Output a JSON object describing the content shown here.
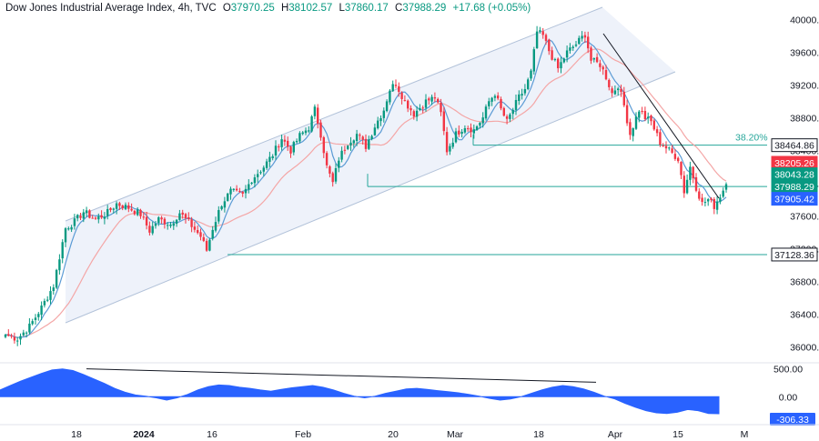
{
  "header": {
    "symbol": "Dow Jones Industrial Average Index, 4h, TVC",
    "open_label": "O",
    "open": "37970.25",
    "high_label": "H",
    "high": "38102.57",
    "low_label": "L",
    "low": "37860.17",
    "close_label": "C",
    "close": "37988.29",
    "change": "+17.68 (+0.05%)"
  },
  "colors": {
    "up": "#089981",
    "down": "#f23645",
    "ma_fast": "#5b9bd5",
    "ma_slow": "#f4a6a6",
    "channel": "#b2c2d9",
    "channel_fill": "#eef2fa",
    "level": "#26a69a",
    "oscillator": "#2962ff"
  },
  "chart_data": [
    {
      "type": "candlestick",
      "title": "Dow Jones Industrial Average Index, 4h, TVC",
      "y_range": [
        35850,
        40150
      ],
      "y_ticks": [
        "40000.00",
        "39600.00",
        "39200.00",
        "38800.00",
        "38400.00",
        "38000.00",
        "37600.00",
        "37200.00",
        "36800.00",
        "36400.00",
        "36000.00"
      ],
      "x_ticks": [
        {
          "label": "18",
          "bold": false
        },
        {
          "label": "2024",
          "bold": true
        },
        {
          "label": "16",
          "bold": false
        },
        {
          "label": "Feb",
          "bold": false
        },
        {
          "label": "20",
          "bold": false
        },
        {
          "label": "Mar",
          "bold": false
        },
        {
          "label": "18",
          "bold": false
        },
        {
          "label": "Apr",
          "bold": false
        },
        {
          "label": "15",
          "bold": false
        },
        {
          "label": "M",
          "bold": false
        }
      ],
      "price_path": [
        [
          0,
          36150
        ],
        [
          4,
          36100
        ],
        [
          8,
          36250
        ],
        [
          12,
          36480
        ],
        [
          16,
          36750
        ],
        [
          18,
          37100
        ],
        [
          20,
          37450
        ],
        [
          23,
          37530
        ],
        [
          26,
          37650
        ],
        [
          30,
          37560
        ],
        [
          34,
          37640
        ],
        [
          37,
          37750
        ],
        [
          41,
          37700
        ],
        [
          45,
          37620
        ],
        [
          48,
          37420
        ],
        [
          51,
          37560
        ],
        [
          55,
          37500
        ],
        [
          58,
          37640
        ],
        [
          62,
          37480
        ],
        [
          65,
          37350
        ],
        [
          67,
          37180
        ],
        [
          69,
          37450
        ],
        [
          72,
          37750
        ],
        [
          75,
          37900
        ],
        [
          79,
          37850
        ],
        [
          82,
          38050
        ],
        [
          86,
          38200
        ],
        [
          89,
          38350
        ],
        [
          92,
          38550
        ],
        [
          95,
          38400
        ],
        [
          98,
          38580
        ],
        [
          101,
          38680
        ],
        [
          103,
          38900
        ],
        [
          105,
          38600
        ],
        [
          107,
          38200
        ],
        [
          109,
          38000
        ],
        [
          111,
          38300
        ],
        [
          114,
          38500
        ],
        [
          117,
          38600
        ],
        [
          120,
          38450
        ],
        [
          123,
          38700
        ],
        [
          126,
          38900
        ],
        [
          128,
          39150
        ],
        [
          130,
          39220
        ],
        [
          133,
          39000
        ],
        [
          136,
          38850
        ],
        [
          140,
          39000
        ],
        [
          143,
          39050
        ],
        [
          145,
          38850
        ],
        [
          147,
          38400
        ],
        [
          150,
          38600
        ],
        [
          153,
          38700
        ],
        [
          156,
          38650
        ],
        [
          159,
          38800
        ],
        [
          161,
          39000
        ],
        [
          163,
          39100
        ],
        [
          165,
          38900
        ],
        [
          167,
          38750
        ],
        [
          169,
          38900
        ],
        [
          171,
          39050
        ],
        [
          173,
          39150
        ],
        [
          175,
          39350
        ],
        [
          176,
          39600
        ],
        [
          177,
          39850
        ],
        [
          179,
          39800
        ],
        [
          181,
          39620
        ],
        [
          184,
          39400
        ],
        [
          187,
          39600
        ],
        [
          190,
          39700
        ],
        [
          193,
          39820
        ],
        [
          195,
          39500
        ],
        [
          198,
          39450
        ],
        [
          200,
          39300
        ],
        [
          202,
          39100
        ],
        [
          204,
          39200
        ],
        [
          206,
          38950
        ],
        [
          208,
          38600
        ],
        [
          211,
          38900
        ],
        [
          213,
          38800
        ],
        [
          215,
          38750
        ],
        [
          218,
          38500
        ],
        [
          221,
          38400
        ],
        [
          224,
          38300
        ],
        [
          226,
          37900
        ],
        [
          228,
          38200
        ],
        [
          230,
          37950
        ],
        [
          232,
          37750
        ],
        [
          234,
          37800
        ],
        [
          236,
          37720
        ],
        [
          238,
          37850
        ],
        [
          240,
          37988.29
        ]
      ],
      "price_tags": [
        {
          "value": "38464.86",
          "price": 38464.86,
          "bg": "#ffffff",
          "fg": "#131722",
          "border": "#131722"
        },
        {
          "value": "38205.26",
          "price": 38250,
          "bg": "#f23645",
          "fg": "#ffffff",
          "border": "#f23645"
        },
        {
          "value": "38043.28",
          "price": 38110,
          "bg": "#089981",
          "fg": "#ffffff",
          "border": "#089981"
        },
        {
          "value": "37988.29",
          "price": 37960,
          "bg": "#089981",
          "fg": "#ffffff",
          "border": "#089981"
        },
        {
          "value": "37905.42",
          "price": 37810,
          "bg": "#2962ff",
          "fg": "#ffffff",
          "border": "#2962ff"
        },
        {
          "value": "37128.36",
          "price": 37128.36,
          "bg": "#ffffff",
          "fg": "#131722",
          "border": "#131722"
        }
      ],
      "annotations": [
        {
          "text": "38.20%",
          "price": 38480,
          "bar": 210
        }
      ]
    },
    {
      "type": "area",
      "y_range": [
        -420,
        560
      ],
      "y_ticks": [
        "500.00",
        "0.00"
      ],
      "last_value": "-306.33",
      "values": [
        120,
        200,
        280,
        350,
        420,
        480,
        500,
        470,
        400,
        320,
        240,
        150,
        80,
        30,
        10,
        -20,
        -60,
        -20,
        40,
        120,
        180,
        210,
        200,
        170,
        150,
        120,
        100,
        130,
        160,
        180,
        200,
        170,
        120,
        60,
        10,
        -20,
        10,
        60,
        100,
        140,
        150,
        130,
        110,
        90,
        70,
        40,
        10,
        -30,
        -60,
        -40,
        0,
        60,
        120,
        170,
        200,
        180,
        140,
        80,
        10,
        -40,
        -120,
        -190,
        -250,
        -290,
        -300,
        -280,
        -230,
        -250,
        -300,
        -306.33
      ]
    }
  ]
}
